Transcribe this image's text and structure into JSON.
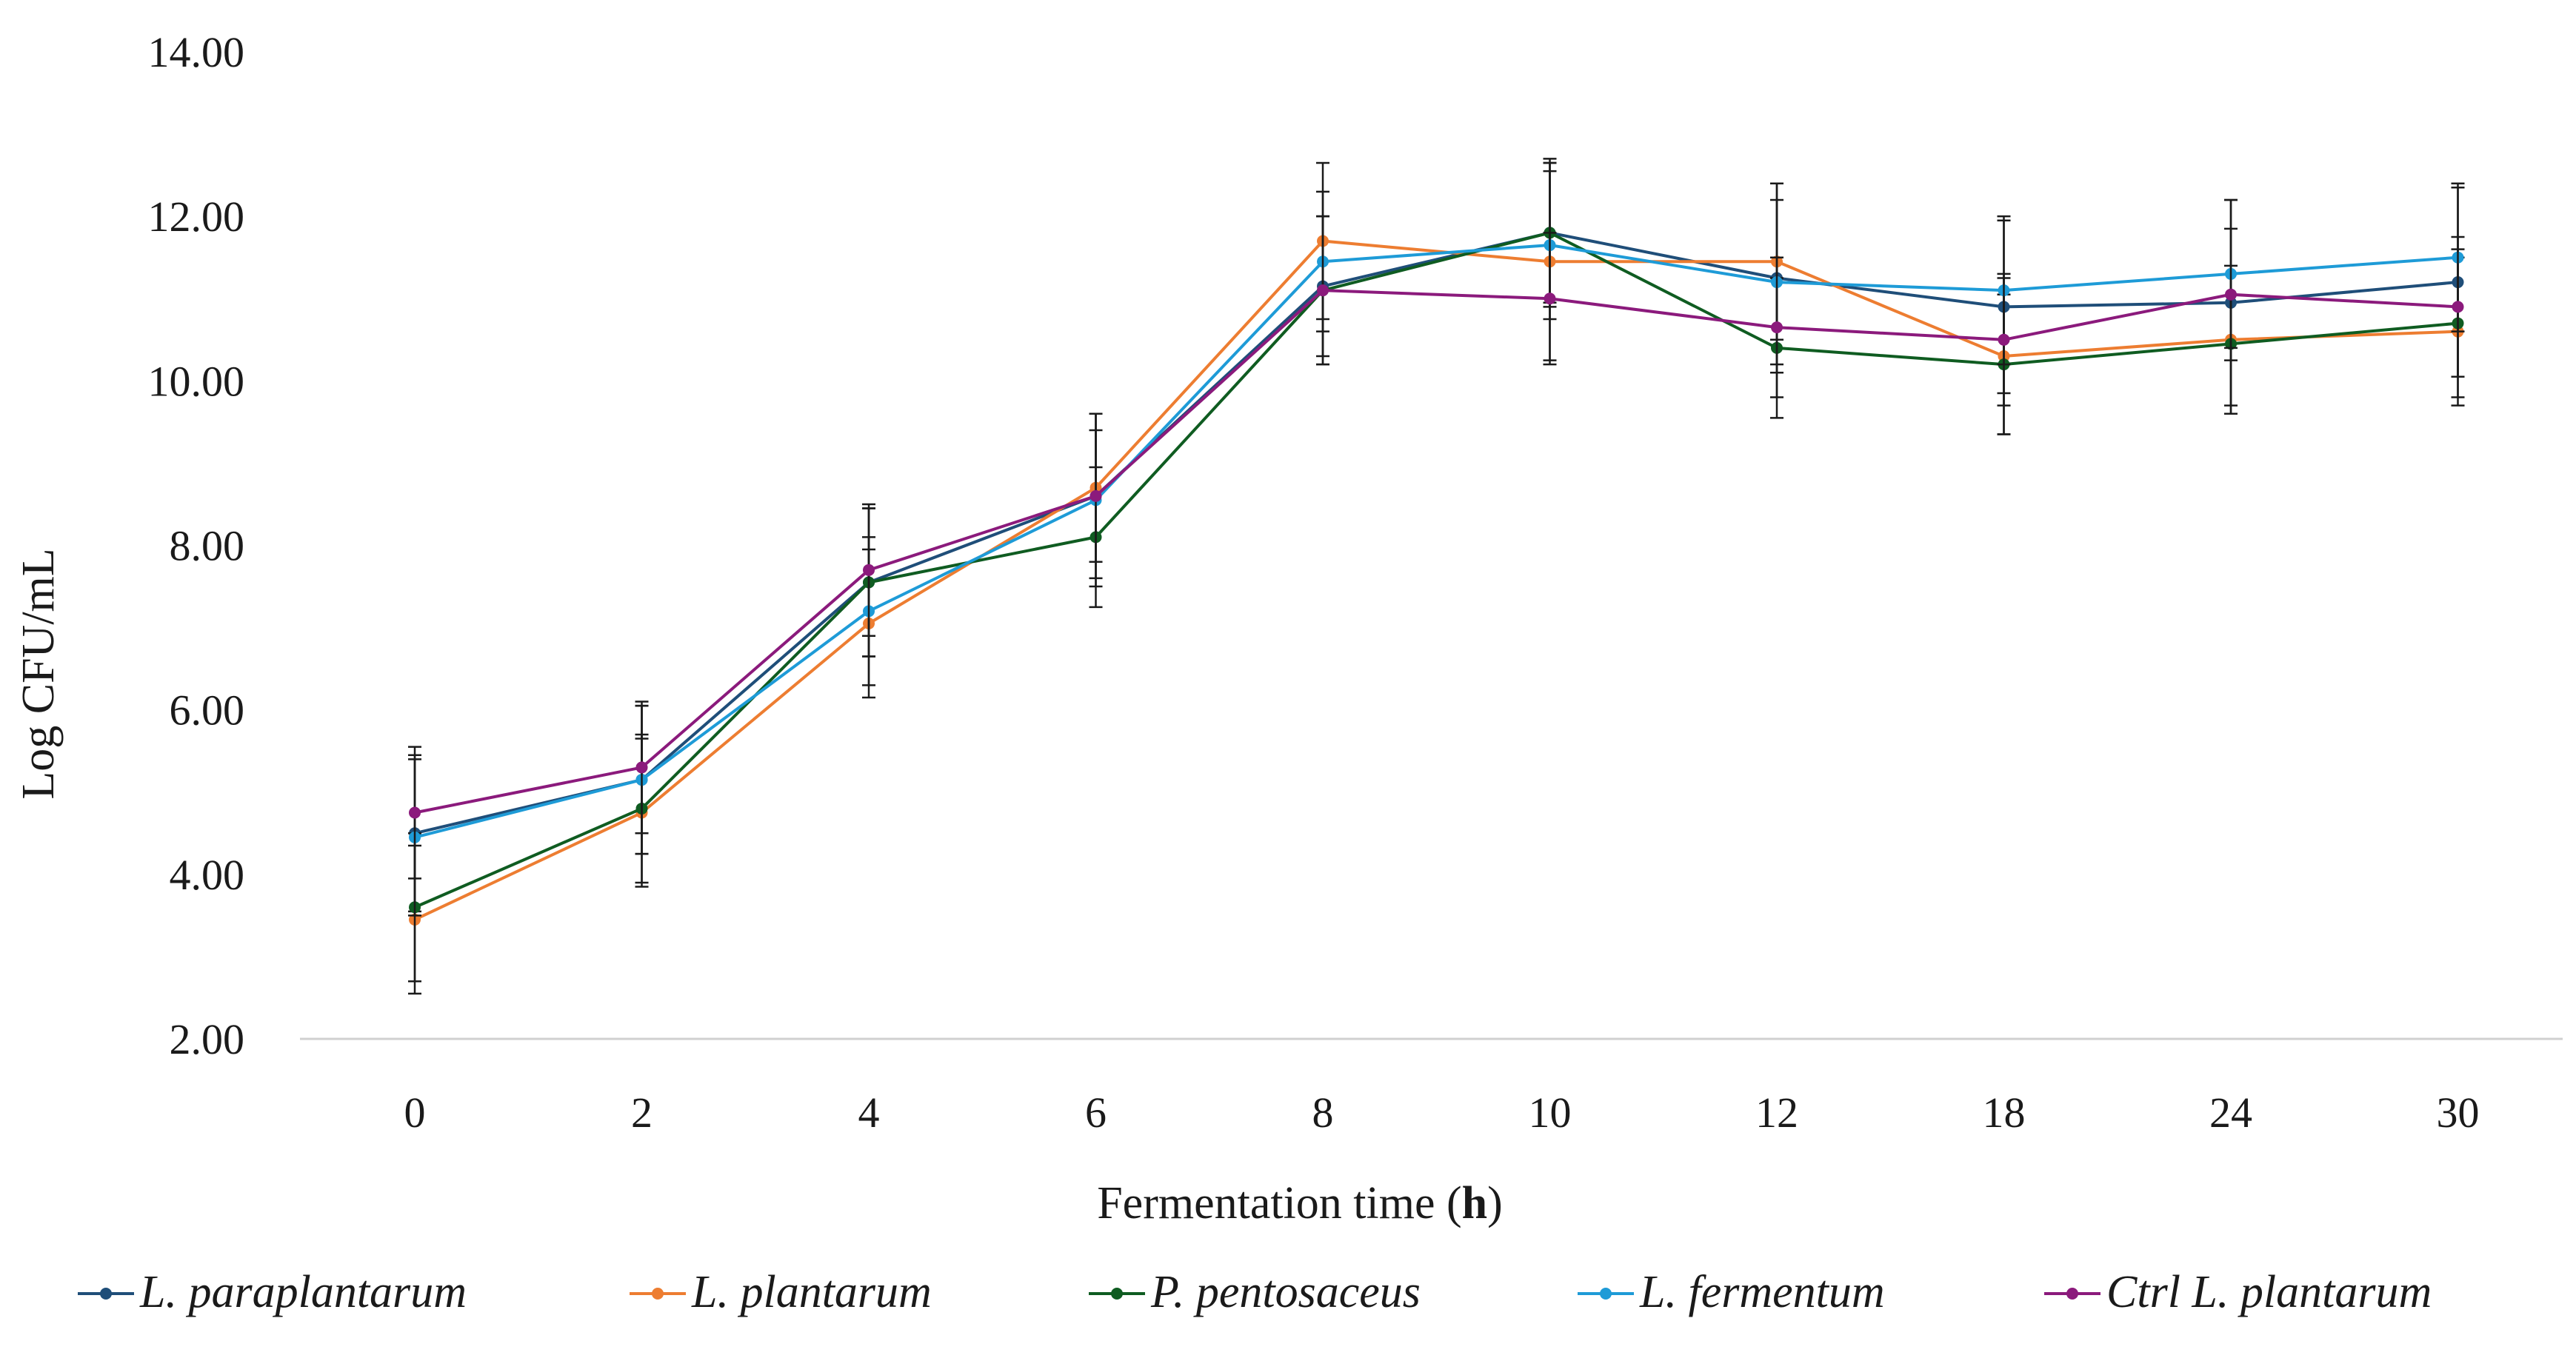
{
  "chart_data": {
    "type": "line",
    "title": "",
    "xlabel": "Fermentation time (",
    "xlabel_unit": "h",
    "xlabel_close": ")",
    "ylabel": "Log CFU/mL",
    "ylim": [
      2.0,
      14.0
    ],
    "yticks": [
      "2.00",
      "4.00",
      "6.00",
      "8.00",
      "10.00",
      "12.00",
      "14.00"
    ],
    "categories": [
      "0",
      "2",
      "4",
      "6",
      "8",
      "10",
      "12",
      "18",
      "24",
      "30"
    ],
    "grid": false,
    "legend_position": "bottom",
    "series": [
      {
        "name": "L. paraplantarum",
        "color": "#1f4e79",
        "values": [
          4.5,
          5.15,
          7.55,
          8.6,
          11.15,
          11.8,
          11.25,
          10.9,
          10.95,
          11.2
        ],
        "errors": [
          0.95,
          0.9,
          0.9,
          1.0,
          0.85,
          0.85,
          1.15,
          1.05,
          1.25,
          1.15
        ]
      },
      {
        "name": "L. plantarum",
        "color": "#ed7d31",
        "values": [
          3.45,
          4.75,
          7.05,
          8.7,
          11.7,
          11.45,
          11.45,
          10.3,
          10.5,
          10.6
        ],
        "errors": [
          0.9,
          0.9,
          0.9,
          0.9,
          0.95,
          1.2,
          0.95,
          0.95,
          0.9,
          0.9
        ]
      },
      {
        "name": "P. pentosaceus",
        "color": "#0f5c21",
        "values": [
          3.6,
          4.8,
          7.55,
          8.1,
          11.1,
          11.8,
          10.4,
          10.2,
          10.45,
          10.7
        ],
        "errors": [
          0.9,
          0.9,
          0.9,
          0.85,
          0.9,
          0.9,
          0.85,
          0.85,
          0.85,
          0.9
        ]
      },
      {
        "name": "L. fermentum",
        "color": "#1e9bd7",
        "values": [
          4.45,
          5.15,
          7.2,
          8.55,
          11.45,
          11.65,
          11.2,
          11.1,
          11.3,
          11.5
        ],
        "errors": [
          0.95,
          0.9,
          0.9,
          1.05,
          0.85,
          0.9,
          1.0,
          0.9,
          0.9,
          0.9
        ]
      },
      {
        "name": "Ctrl L. plantarum",
        "color": "#8b1a7c",
        "values": [
          4.75,
          5.3,
          7.7,
          8.6,
          11.1,
          11.0,
          10.65,
          10.5,
          11.05,
          10.9
        ],
        "errors": [
          0.8,
          0.8,
          0.8,
          0.8,
          0.9,
          0.8,
          0.85,
          0.8,
          0.8,
          0.85
        ]
      }
    ]
  }
}
